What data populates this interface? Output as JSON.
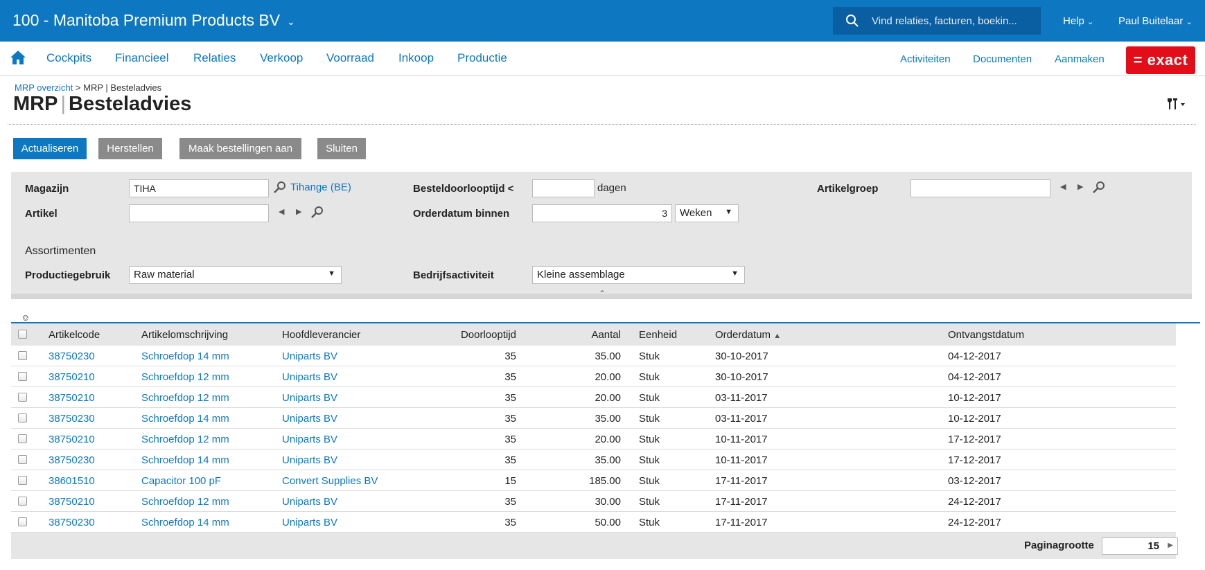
{
  "header": {
    "company": "100 - Manitoba Premium Products BV",
    "search_placeholder": "Vind relaties, facturen, boekin...",
    "help": "Help",
    "user": "Paul Buitelaar"
  },
  "nav": {
    "items": [
      "Cockpits",
      "Financieel",
      "Relaties",
      "Verkoop",
      "Voorraad",
      "Inkoop",
      "Productie"
    ],
    "right": [
      "Activiteiten",
      "Documenten",
      "Aanmaken"
    ],
    "logo": "= exact"
  },
  "breadcrumb": {
    "parent": "MRP overzicht",
    "separator": ">",
    "current": "MRP | Besteladvies"
  },
  "title": {
    "part1": "MRP",
    "sep": "|",
    "part2": "Besteladvies"
  },
  "buttons": {
    "actualiseren": "Actualiseren",
    "herstellen": "Herstellen",
    "maak": "Maak bestellingen aan",
    "sluiten": "Sluiten"
  },
  "filters": {
    "magazijn_label": "Magazijn",
    "magazijn_value": "TIHA",
    "magazijn_link": "Tihange (BE)",
    "artikel_label": "Artikel",
    "besteldoorlooptijd_label": "Besteldoorlooptijd <",
    "besteldoorlooptijd_unit": "dagen",
    "orderdatum_label": "Orderdatum binnen",
    "orderdatum_value": "3",
    "orderdatum_unit": "Weken",
    "artikelgroep_label": "Artikelgroep",
    "assortimenten_title": "Assortimenten",
    "productiegebruik_label": "Productiegebruik",
    "productiegebruik_value": "Raw material",
    "bedrijfsactiviteit_label": "Bedrijfsactiviteit",
    "bedrijfsactiviteit_value": "Kleine assemblage"
  },
  "table": {
    "columns": {
      "artikelcode": "Artikelcode",
      "omschrijving": "Artikelomschrijving",
      "leverancier": "Hoofdleverancier",
      "doorlooptijd": "Doorlooptijd",
      "aantal": "Aantal",
      "eenheid": "Eenheid",
      "orderdatum": "Orderdatum",
      "ontvangstdatum": "Ontvangstdatum"
    },
    "sort_indicator": "▲",
    "rows": [
      {
        "code": "38750230",
        "desc": "Schroefdop 14 mm",
        "supplier": "Uniparts BV",
        "lead": "35",
        "qty": "35.00",
        "unit": "Stuk",
        "order": "30-10-2017",
        "receipt": "04-12-2017"
      },
      {
        "code": "38750210",
        "desc": "Schroefdop 12 mm",
        "supplier": "Uniparts BV",
        "lead": "35",
        "qty": "20.00",
        "unit": "Stuk",
        "order": "30-10-2017",
        "receipt": "04-12-2017"
      },
      {
        "code": "38750210",
        "desc": "Schroefdop 12 mm",
        "supplier": "Uniparts BV",
        "lead": "35",
        "qty": "20.00",
        "unit": "Stuk",
        "order": "03-11-2017",
        "receipt": "10-12-2017"
      },
      {
        "code": "38750230",
        "desc": "Schroefdop 14 mm",
        "supplier": "Uniparts BV",
        "lead": "35",
        "qty": "35.00",
        "unit": "Stuk",
        "order": "03-11-2017",
        "receipt": "10-12-2017"
      },
      {
        "code": "38750210",
        "desc": "Schroefdop 12 mm",
        "supplier": "Uniparts BV",
        "lead": "35",
        "qty": "20.00",
        "unit": "Stuk",
        "order": "10-11-2017",
        "receipt": "17-12-2017"
      },
      {
        "code": "38750230",
        "desc": "Schroefdop 14 mm",
        "supplier": "Uniparts BV",
        "lead": "35",
        "qty": "35.00",
        "unit": "Stuk",
        "order": "10-11-2017",
        "receipt": "17-12-2017"
      },
      {
        "code": "38601510",
        "desc": "Capacitor 100 pF",
        "supplier": "Convert Supplies BV",
        "lead": "15",
        "qty": "185.00",
        "unit": "Stuk",
        "order": "17-11-2017",
        "receipt": "03-12-2017"
      },
      {
        "code": "38750210",
        "desc": "Schroefdop 12 mm",
        "supplier": "Uniparts BV",
        "lead": "35",
        "qty": "30.00",
        "unit": "Stuk",
        "order": "17-11-2017",
        "receipt": "24-12-2017"
      },
      {
        "code": "38750230",
        "desc": "Schroefdop 14 mm",
        "supplier": "Uniparts BV",
        "lead": "35",
        "qty": "50.00",
        "unit": "Stuk",
        "order": "17-11-2017",
        "receipt": "24-12-2017"
      }
    ]
  },
  "footer": {
    "page_size_label": "Paginagrootte",
    "page_size_value": "15"
  },
  "colors": {
    "brand_blue": "#0d77c2",
    "exact_red": "#e20d18",
    "panel_grey": "#e6e6e6"
  }
}
